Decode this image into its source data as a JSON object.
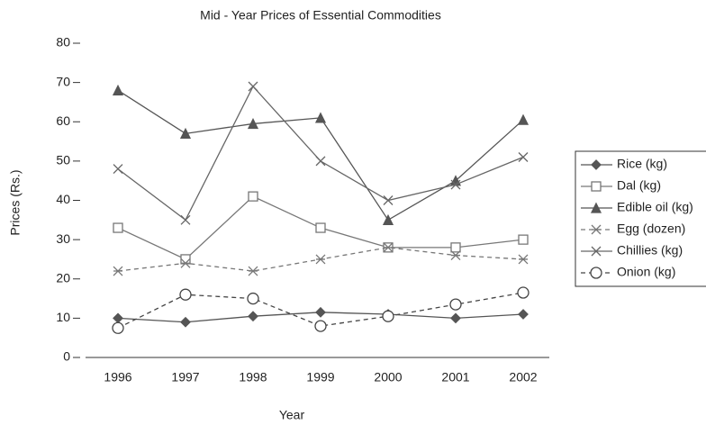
{
  "chart_data": {
    "type": "line",
    "title": "Mid - Year Prices of Essential Commodities",
    "xlabel": "Year",
    "ylabel": "Prices (Rs.)",
    "categories": [
      "1996",
      "1997",
      "1998",
      "1999",
      "2000",
      "2001",
      "2002"
    ],
    "ylim": [
      0,
      80
    ],
    "yticks": [
      0,
      10,
      20,
      30,
      40,
      50,
      60,
      70,
      80
    ],
    "legend": "right",
    "series": [
      {
        "name": "Rice (kg)",
        "color": "#555555",
        "marker": "diamond",
        "line": "solid",
        "values": [
          10,
          9,
          10.5,
          11.5,
          11,
          10,
          11
        ]
      },
      {
        "name": "Dal (kg)",
        "color": "#777777",
        "marker": "square",
        "line": "solid",
        "values": [
          33,
          25,
          41,
          33,
          28,
          28,
          30
        ]
      },
      {
        "name": "Edible oil (kg)",
        "color": "#555555",
        "marker": "triangle",
        "line": "solid",
        "values": [
          68,
          57,
          59.5,
          61,
          35,
          45,
          60.5
        ]
      },
      {
        "name": "Egg (dozen)",
        "color": "#777777",
        "marker": "asterisk",
        "line": "dashed",
        "values": [
          22,
          24,
          22,
          25,
          28,
          26,
          25
        ]
      },
      {
        "name": "Chillies (kg)",
        "color": "#666666",
        "marker": "x",
        "line": "solid",
        "values": [
          48,
          35,
          69,
          50,
          40,
          44,
          51
        ]
      },
      {
        "name": "Onion (kg)",
        "color": "#444444",
        "marker": "circle",
        "line": "dashed",
        "values": [
          7.5,
          16,
          15,
          8,
          10.5,
          13.5,
          16.5
        ]
      }
    ]
  }
}
